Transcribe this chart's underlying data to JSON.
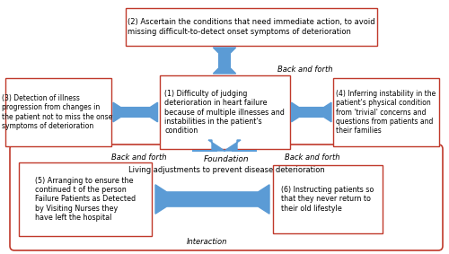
{
  "bg_color": "#ffffff",
  "box_edge_color": "#c0392b",
  "arrow_color": "#5b9bd5",
  "text_color": "#000000",
  "box2_text": "(2) Ascertain the conditions that need immediate action, to avoid\nmissing difficult-to-detect onset symptoms of deterioration",
  "box1_text": "(1) Difficulty of judging\ndeterioration in heart failure\nbecause of multiple illnesses and\ninstabilities in the patient's\ncondition",
  "box3_text": "(3) Detection of illness\nprogression from changes in\nthe patient not to miss the onset\nsymptoms of deterioration",
  "box4_text": "(4) Inferring instability in the\npatient's physical condition\nfrom 'trivial' concerns and\nquestions from patients and\ntheir families",
  "box5_text": "(5) Arranging to ensure the\ncontinued t of the person\nFailure Patients as Detected\nby Visiting Nurses they\nhave left the hospital",
  "box6_text": "(6) Instructing patients so\nthat they never return to\ntheir old lifestyle",
  "foundation_label": "Foundation",
  "living_label": "Living adjustments to prevent disease deterioration",
  "interaction_label": "Interaction",
  "back_forth_top": "Back and forth",
  "back_forth_left": "Back and forth",
  "back_forth_right": "Back and forth"
}
